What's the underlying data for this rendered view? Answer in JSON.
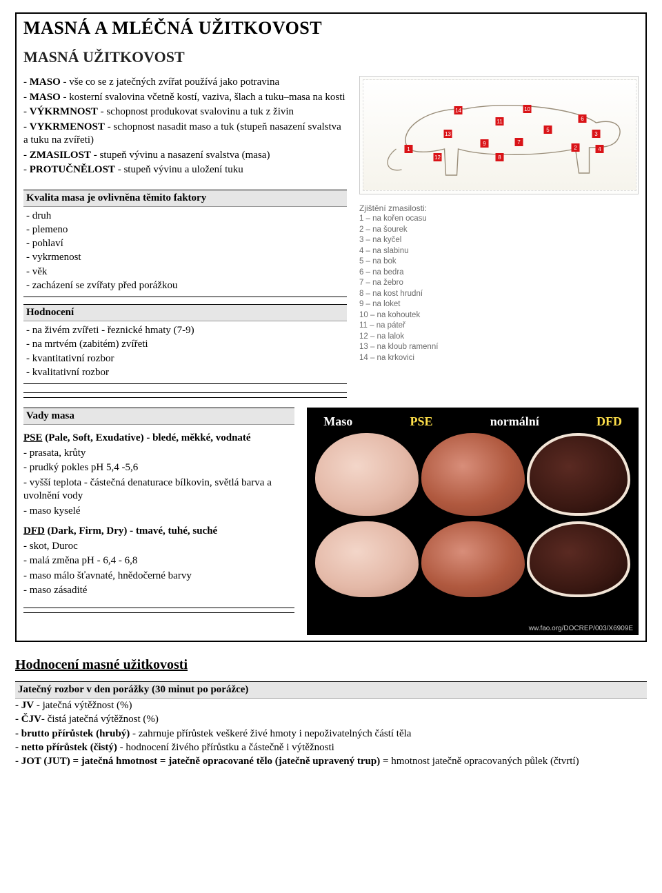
{
  "header": {
    "title": "MASNÁ A MLÉČNÁ UŽITKOVOST",
    "subtitle": "MASNÁ UŽITKOVOST"
  },
  "definitions": [
    "- MASO - vše co se z jatečných zvířat používá jako potravina",
    "- MASO - kosterní svalovina včetně kostí, vaziva, šlach a tuku–masa na kosti",
    "- VÝKRMNOST - schopnost produkovat svalovinu a tuk z živin",
    "- VYKRMENOST - schopnost nasadit maso a tuk (stupeň nasazení svalstva a tuku na zvířeti)",
    "- ZMASILOST - stupeň vývinu a nasazení svalstva (masa)",
    "- PROTUČNĚLOST - stupeň vývinu a uložení tuku"
  ],
  "kvalita": {
    "title": "Kvalita masa je ovlivněna těmito faktory",
    "items": [
      "- druh",
      "- plemeno",
      "- pohlaví",
      "- vykrmenost",
      "- věk",
      "- zacházení se zvířaty před porážkou"
    ]
  },
  "hodnoceni": {
    "title": "Hodnocení",
    "items": [
      "- na živém zvířeti - řeznické hmaty (7-9)",
      "- na mrtvém (zabitém) zvířeti",
      "- kvantitativní rozbor",
      "- kvalitativní rozbor"
    ]
  },
  "cow_diagram": {
    "caption": "Zjištění zmasilosti:",
    "numbers": [
      "14",
      "10",
      "6",
      "11",
      "5",
      "13",
      "3",
      "9",
      "7",
      "2",
      "4",
      "12",
      "8",
      "1"
    ],
    "legend": [
      "1 – na kořen ocasu",
      "2 – na šourek",
      "3 – na kyčel",
      "4 – na slabinu",
      "5 – na bok",
      "6 – na bedra",
      "7 – na žebro",
      "8 – na kost hrudní",
      "9 – na loket",
      "10 – na kohoutek",
      "11 – na páteř",
      "12 – na lalok",
      "13 – na kloub ramenní",
      "14 – na krkovici"
    ],
    "marker_color": "#d91317",
    "outline_color": "#9a8e7a"
  },
  "vady": {
    "title": "Vady masa",
    "pse": {
      "heading": "PSE (Pale, Soft, Exudative) - bledé, měkké, vodnaté",
      "lines": [
        "- prasata, krůty",
        "- prudký pokles pH 5,4 -5,6",
        "- vyšší teplota - částečná denaturace bílkovin, světlá barva a uvolnění vody",
        "- maso kyselé"
      ]
    },
    "dfd": {
      "heading": "DFD (Dark, Firm, Dry) - tmavé, tuhé, suché",
      "lines": [
        "- skot, Duroc",
        "- malá změna pH - 6,4 - 6,8",
        "- maso málo šťavnaté, hnědočerné barvy",
        "- maso zásadité"
      ]
    }
  },
  "meat_figure": {
    "labels": {
      "maso": "Maso",
      "pse": "PSE",
      "normalni": "normální",
      "dfd": "DFD"
    },
    "credit": "ww.fao.org/DOCREP/003/X6909E",
    "colors": {
      "background": "#000000",
      "white_label": "#ffffff",
      "yellow_label": "#ffe04a",
      "pse_fill": "#e4b9a8",
      "norm_fill": "#b0593f",
      "dfd_fill": "#3a1812",
      "dfd_rind": "#f2e4d6"
    }
  },
  "bottom": {
    "heading": "Hodnocení masné užitkovosti",
    "rozbor_title": "Jatečný rozbor v den porážky (30 minut po porážce)",
    "lines": [
      "- JV - jatečná výtěžnost (%)",
      "- ČJV- čistá jatečná výtěžnost (%)",
      "- brutto přírůstek (hrubý) - zahrnuje přírůstek veškeré živé hmoty i nepoživatelných částí těla",
      "- netto přírůstek (čistý) - hodnocení živého přírůstku a částečně i výtěžnosti",
      "- JOT (JUT) = jatečná hmotnost = jatečně opracované tělo (jatečně upravený trup) = hmotnost jatečně opracovaných půlek (čtvrtí)"
    ],
    "bold_prefixes": [
      "- JV",
      "- ČJV",
      "- brutto přírůstek (hrubý)",
      "- netto přírůstek (čistý)",
      "- JOT (JUT) = jatečná hmotnost = jatečně opracované tělo (jatečně upravený trup)"
    ]
  }
}
